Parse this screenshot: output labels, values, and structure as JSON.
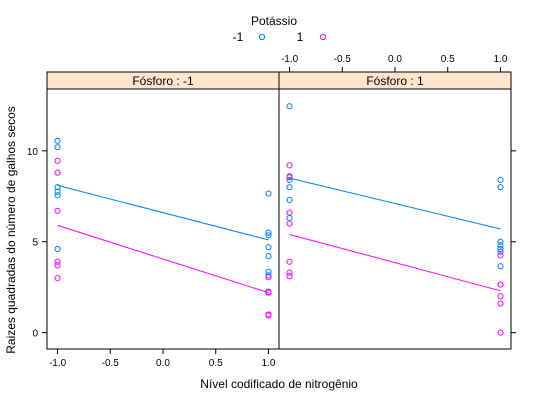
{
  "chart_data": {
    "type": "scatter",
    "legend": {
      "title": "Potássio",
      "placement": "top-center",
      "entries": [
        {
          "label": "-1",
          "color": "#0080ff"
        },
        {
          "label": "1",
          "color": "#ff00ff"
        }
      ]
    },
    "xlabel": "Nível codificado de nitrogênio",
    "ylabel": "Raizes quadradas do número de galhos secos",
    "xlim": [
      -1.1,
      1.1
    ],
    "ylim": [
      -0.9,
      13.4
    ],
    "xticks": [
      -1.0,
      -0.5,
      0.0,
      0.5,
      1.0
    ],
    "xtick_labels": [
      "-1.0",
      "-0.5",
      "0.0",
      "0.5",
      "1.0"
    ],
    "yticks": [
      0,
      5,
      10
    ],
    "ytick_labels": [
      "0",
      "5",
      "10"
    ],
    "grid": false,
    "panels": [
      {
        "strip": "Fósforo : -1",
        "series": [
          {
            "name": "-1",
            "color": "#0080ff",
            "points": [
              [
                -1,
                10.55
              ],
              [
                -1,
                10.2
              ],
              [
                -1,
                8.0
              ],
              [
                -1,
                7.75
              ],
              [
                -1,
                7.55
              ],
              [
                -1,
                4.6
              ],
              [
                1,
                7.65
              ],
              [
                1,
                5.5
              ],
              [
                1,
                5.35
              ],
              [
                1,
                4.7
              ],
              [
                1,
                4.2
              ],
              [
                1,
                3.35
              ],
              [
                1,
                3.15
              ],
              [
                1,
                2.25
              ]
            ],
            "fit": [
              [
                -1,
                8.1
              ],
              [
                1,
                5.1
              ]
            ]
          },
          {
            "name": "1",
            "color": "#ff00ff",
            "points": [
              [
                -1,
                9.45
              ],
              [
                -1,
                8.8
              ],
              [
                -1,
                6.7
              ],
              [
                -1,
                3.9
              ],
              [
                -1,
                3.7
              ],
              [
                -1,
                3.0
              ],
              [
                1,
                3.05
              ],
              [
                1,
                2.25
              ],
              [
                1,
                2.2
              ],
              [
                1,
                1.0
              ],
              [
                1,
                0.95
              ]
            ],
            "fit": [
              [
                -1,
                5.9
              ],
              [
                1,
                2.2
              ]
            ]
          }
        ]
      },
      {
        "strip": "Fósforo : 1",
        "series": [
          {
            "name": "-1",
            "color": "#0080ff",
            "points": [
              [
                -1,
                12.45
              ],
              [
                -1,
                8.6
              ],
              [
                -1,
                8.4
              ],
              [
                -1,
                8.0
              ],
              [
                -1,
                7.3
              ],
              [
                -1,
                6.3
              ],
              [
                1,
                8.4
              ],
              [
                1,
                8.0
              ],
              [
                1,
                5.0
              ],
              [
                1,
                4.8
              ],
              [
                1,
                4.6
              ],
              [
                1,
                4.45
              ],
              [
                1,
                3.65
              ],
              [
                1,
                2.65
              ]
            ],
            "fit": [
              [
                -1,
                8.5
              ],
              [
                1,
                5.7
              ]
            ]
          },
          {
            "name": "1",
            "color": "#ff00ff",
            "points": [
              [
                -1,
                9.2
              ],
              [
                -1,
                8.55
              ],
              [
                -1,
                6.6
              ],
              [
                -1,
                6.0
              ],
              [
                -1,
                3.9
              ],
              [
                -1,
                3.3
              ],
              [
                -1,
                3.1
              ],
              [
                1,
                4.25
              ],
              [
                1,
                2.65
              ],
              [
                1,
                2.0
              ],
              [
                1,
                1.6
              ],
              [
                1,
                0.0
              ]
            ],
            "fit": [
              [
                -1,
                5.4
              ],
              [
                1,
                2.3
              ]
            ]
          }
        ]
      }
    ]
  }
}
